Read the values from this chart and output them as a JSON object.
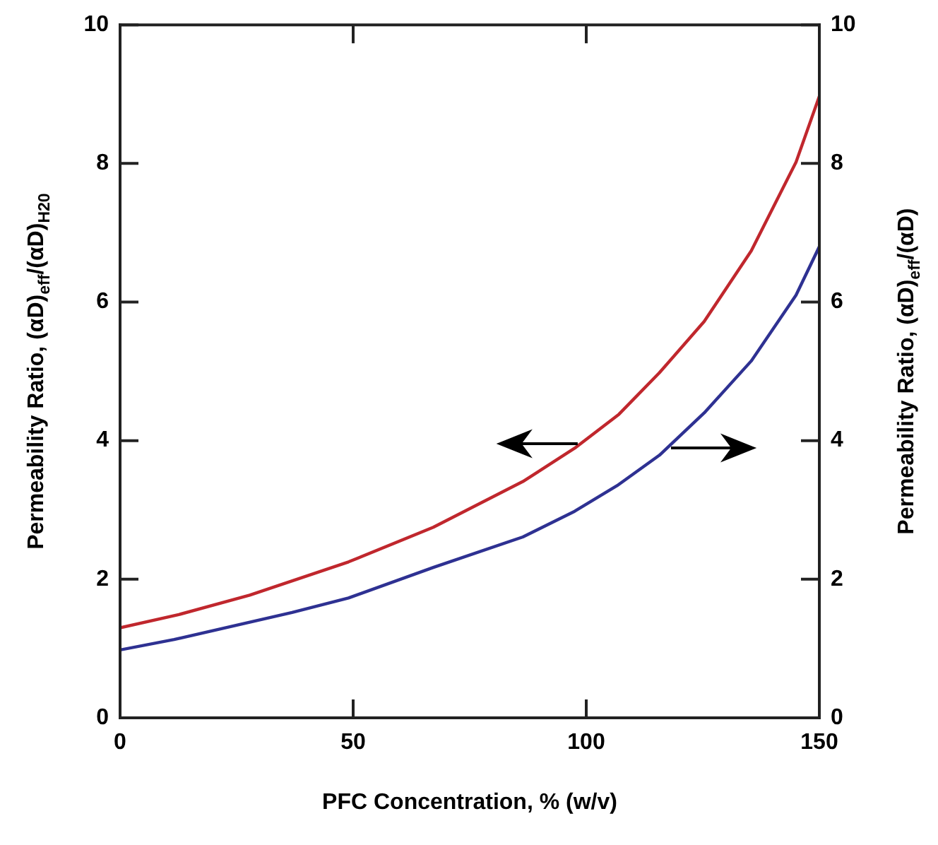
{
  "chart_data": {
    "type": "line",
    "xlabel": "PFC Concentration, % (w/v)",
    "ylabel": "Permeability Ratio, (αD)$_{eff}$/(αD)$_{H20}$",
    "y2label": "Permeability Ratio, (αD)$_{eff}$/(αD)",
    "xlim": [
      0,
      150
    ],
    "xticks": [
      0,
      50,
      100,
      150
    ],
    "ylim": [
      0,
      10
    ],
    "yticks": [
      0,
      2,
      4,
      6,
      8,
      10
    ],
    "y2lim": [
      0,
      10
    ],
    "y2ticks": [
      0,
      2,
      4,
      6,
      8,
      10
    ],
    "grid": false,
    "legend": false,
    "marker": "none",
    "line_style": "solid",
    "series": [
      {
        "color": "#c0272d",
        "x": [
          0,
          12.6,
          27.8,
          49,
          67.2,
          86.4,
          97.5,
          107,
          115.7,
          125.3,
          135.4,
          145,
          150
        ],
        "values": [
          1.3,
          1.49,
          1.77,
          2.25,
          2.75,
          3.41,
          3.89,
          4.38,
          4.98,
          5.72,
          6.74,
          8.02,
          8.97
        ]
      },
      {
        "color": "#2e3192",
        "axis": "y2",
        "x": [
          0,
          11.6,
          36.9,
          49,
          67.2,
          86.4,
          97.5,
          106.6,
          115.7,
          125.3,
          135.4,
          145,
          150
        ],
        "values": [
          0.98,
          1.13,
          1.52,
          1.73,
          2.17,
          2.61,
          2.98,
          3.35,
          3.79,
          4.4,
          5.15,
          6.1,
          6.8
        ]
      }
    ]
  }
}
